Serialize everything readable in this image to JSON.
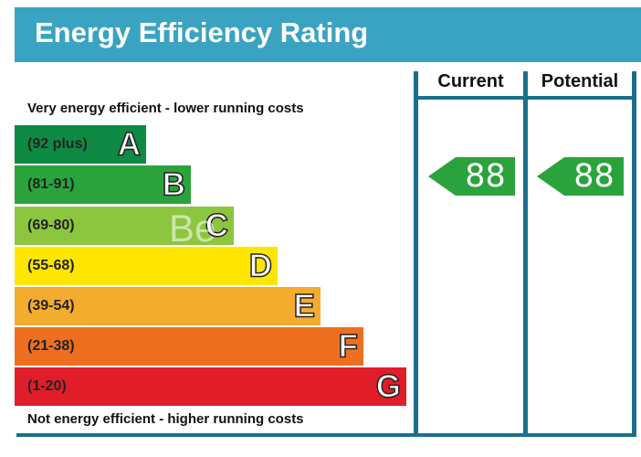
{
  "chart_data": {
    "type": "table",
    "title": "Energy Efficiency Rating",
    "top_caption": "Very energy efficient - lower running costs",
    "bottom_caption": "Not energy efficient - higher running costs",
    "columns": [
      "Current",
      "Potential"
    ],
    "bands": [
      {
        "range": "(92 plus)",
        "letter": "A",
        "color": "#0e8a44"
      },
      {
        "range": "(81-91)",
        "letter": "B",
        "color": "#2aa33c"
      },
      {
        "range": "(69-80)",
        "letter": "C",
        "color": "#8cc63e"
      },
      {
        "range": "(55-68)",
        "letter": "D",
        "color": "#ffe600"
      },
      {
        "range": "(39-54)",
        "letter": "E",
        "color": "#f4ac2e"
      },
      {
        "range": "(21-38)",
        "letter": "F",
        "color": "#ee6f1f"
      },
      {
        "range": "(1-20)",
        "letter": "G",
        "color": "#e21d2a"
      }
    ],
    "current": {
      "value": 88,
      "band": "B"
    },
    "potential": {
      "value": 88,
      "band": "B"
    }
  },
  "watermark": "Be",
  "colors": {
    "header": "#3aa3c2",
    "frame": "#1d6e8c",
    "arrow": "#2aa33c"
  }
}
